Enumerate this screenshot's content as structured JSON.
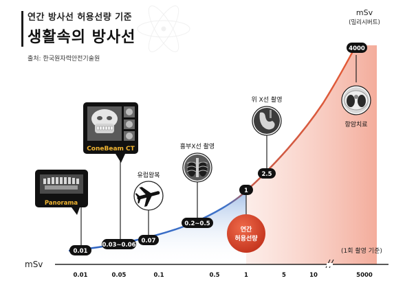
{
  "header": {
    "subtitle": "연간 방사선 허용선량 기준",
    "title": "생활속의 방사선",
    "source": "출처: 한국원자력안전기술원"
  },
  "axis": {
    "unit": "mSv",
    "unit_korean": "(밀리시버트)",
    "bottom_unit": "mSv",
    "tick_labels": [
      "0.01",
      "0.05",
      "0.1",
      "0.5",
      "1",
      "5",
      "10",
      "5000"
    ],
    "note": "(1회 촬영 기준)"
  },
  "chart_data": {
    "type": "line",
    "title": "생활속의 방사선",
    "ylabel": "mSv",
    "x_scale": "log",
    "x_ticks": [
      "0.01",
      "0.05",
      "0.1",
      "0.5",
      "1",
      "5",
      "10",
      "5000"
    ],
    "reference": {
      "label": "연간 허용선량",
      "value": 1
    },
    "points": [
      {
        "label": "Panorama",
        "value": "0.01"
      },
      {
        "label": "ConeBeam CT",
        "value": "0.03~0.06"
      },
      {
        "label": "유럽왕복",
        "value": "0.07"
      },
      {
        "label": "흉부X선 촬영",
        "value": "0.2~0.5"
      },
      {
        "label": "",
        "value": "1"
      },
      {
        "label": "위 X선 촬영",
        "value": "2.5"
      },
      {
        "label": "항암치료",
        "value": "4000"
      }
    ]
  },
  "colors": {
    "curve_low": "#3a6fc4",
    "curve_high": "#e0593a",
    "annual_circle": "#d9452b",
    "pill": "#111111"
  },
  "icons": [
    "teeth-xray-icon",
    "skull-3d-icon",
    "airplane-icon",
    "chest-xray-icon",
    "stomach-xray-icon",
    "lung-ct-icon"
  ]
}
